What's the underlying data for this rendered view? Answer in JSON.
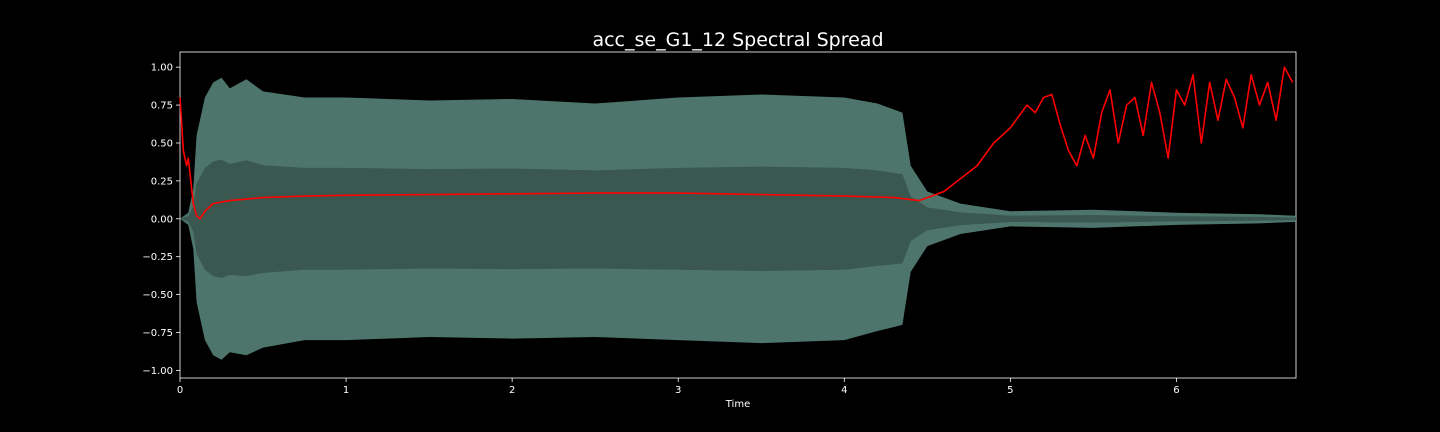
{
  "chart_data": {
    "type": "line",
    "title": "acc_se_G1_12 Spectral Spread",
    "xlabel": "Time",
    "ylabel": "",
    "xlim": [
      0,
      6.72
    ],
    "ylim": [
      -1.05,
      1.1
    ],
    "x_ticks": [
      0,
      1,
      2,
      3,
      4,
      5,
      6
    ],
    "x_tick_labels": [
      "0",
      "1",
      "2",
      "3",
      "4",
      "5",
      "6"
    ],
    "y_ticks": [
      1.0,
      0.75,
      0.5,
      0.25,
      0.0,
      -0.25,
      -0.5,
      -0.75,
      -1.0
    ],
    "y_tick_labels": [
      "1.00",
      "0.75",
      "0.50",
      "0.25",
      "0.00",
      "−0.25",
      "−0.50",
      "−0.75",
      "−1.00"
    ],
    "grid": false,
    "legend": "none",
    "background": "#000000",
    "series": [
      {
        "kind": "waveform-envelope",
        "color": "#5b8a7e",
        "fill_inner": "#3a5850",
        "x": [
          0.0,
          0.05,
          0.08,
          0.1,
          0.15,
          0.2,
          0.25,
          0.3,
          0.4,
          0.5,
          0.75,
          1.0,
          1.5,
          2.0,
          2.5,
          3.0,
          3.5,
          4.0,
          4.2,
          4.35,
          4.4,
          4.5,
          4.7,
          5.0,
          5.5,
          6.0,
          6.5,
          6.72
        ],
        "upper": [
          0.0,
          0.04,
          0.2,
          0.55,
          0.8,
          0.9,
          0.93,
          0.86,
          0.92,
          0.84,
          0.8,
          0.8,
          0.78,
          0.79,
          0.76,
          0.8,
          0.82,
          0.8,
          0.76,
          0.7,
          0.35,
          0.18,
          0.1,
          0.05,
          0.06,
          0.04,
          0.03,
          0.02
        ],
        "lower": [
          0.0,
          -0.04,
          -0.2,
          -0.55,
          -0.8,
          -0.9,
          -0.93,
          -0.88,
          -0.9,
          -0.85,
          -0.8,
          -0.8,
          -0.78,
          -0.79,
          -0.78,
          -0.8,
          -0.82,
          -0.8,
          -0.74,
          -0.7,
          -0.35,
          -0.18,
          -0.1,
          -0.05,
          -0.06,
          -0.04,
          -0.03,
          -0.02
        ]
      },
      {
        "kind": "line",
        "color": "#ff0000",
        "x": [
          0.0,
          0.02,
          0.04,
          0.05,
          0.06,
          0.08,
          0.1,
          0.12,
          0.15,
          0.2,
          0.3,
          0.5,
          0.75,
          1.0,
          1.5,
          2.0,
          2.5,
          3.0,
          3.5,
          4.0,
          4.3,
          4.45,
          4.6,
          4.8,
          4.9,
          5.0,
          5.1,
          5.15,
          5.2,
          5.25,
          5.3,
          5.35,
          5.4,
          5.45,
          5.5,
          5.55,
          5.6,
          5.65,
          5.7,
          5.75,
          5.8,
          5.85,
          5.9,
          5.95,
          6.0,
          6.05,
          6.1,
          6.15,
          6.2,
          6.25,
          6.3,
          6.35,
          6.4,
          6.45,
          6.5,
          6.55,
          6.6,
          6.65,
          6.7
        ],
        "y": [
          0.8,
          0.45,
          0.35,
          0.4,
          0.3,
          0.1,
          0.02,
          0.0,
          0.05,
          0.1,
          0.12,
          0.14,
          0.15,
          0.155,
          0.16,
          0.165,
          0.17,
          0.17,
          0.16,
          0.15,
          0.14,
          0.12,
          0.18,
          0.35,
          0.5,
          0.6,
          0.75,
          0.7,
          0.8,
          0.82,
          0.62,
          0.45,
          0.35,
          0.55,
          0.4,
          0.7,
          0.85,
          0.5,
          0.75,
          0.8,
          0.55,
          0.9,
          0.7,
          0.4,
          0.85,
          0.75,
          0.95,
          0.5,
          0.9,
          0.65,
          0.92,
          0.8,
          0.6,
          0.95,
          0.75,
          0.9,
          0.65,
          1.0,
          0.9
        ]
      }
    ]
  }
}
